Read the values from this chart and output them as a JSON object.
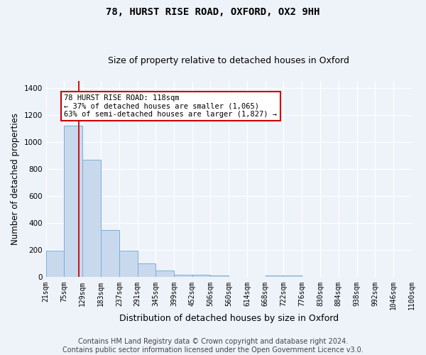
{
  "title": "78, HURST RISE ROAD, OXFORD, OX2 9HH",
  "subtitle": "Size of property relative to detached houses in Oxford",
  "xlabel": "Distribution of detached houses by size in Oxford",
  "ylabel": "Number of detached properties",
  "bin_edges": [
    21,
    75,
    129,
    183,
    237,
    291,
    345,
    399,
    452,
    506,
    560,
    614,
    668,
    722,
    776,
    830,
    884,
    938,
    992,
    1046,
    1100
  ],
  "bar_heights": [
    195,
    1120,
    870,
    350,
    195,
    100,
    50,
    20,
    20,
    15,
    0,
    0,
    15,
    15,
    0,
    0,
    0,
    0,
    0,
    0
  ],
  "bar_color": "#c8d9ee",
  "bar_edge_color": "#7bafd4",
  "red_line_x": 118,
  "annotation_line1": "78 HURST RISE ROAD: 118sqm",
  "annotation_line2": "← 37% of detached houses are smaller (1,065)",
  "annotation_line3": "63% of semi-detached houses are larger (1,827) →",
  "annotation_box_color": "#ffffff",
  "annotation_box_edge_color": "#cc0000",
  "ylim": [
    0,
    1450
  ],
  "yticks": [
    0,
    200,
    400,
    600,
    800,
    1000,
    1200,
    1400
  ],
  "footnote_line1": "Contains HM Land Registry data © Crown copyright and database right 2024.",
  "footnote_line2": "Contains public sector information licensed under the Open Government Licence v3.0.",
  "bg_color": "#eef2f9",
  "grid_color": "#ffffff",
  "title_fontsize": 10,
  "subtitle_fontsize": 9,
  "tick_label_fontsize": 7,
  "ylabel_fontsize": 8.5,
  "xlabel_fontsize": 9,
  "footnote_fontsize": 7
}
